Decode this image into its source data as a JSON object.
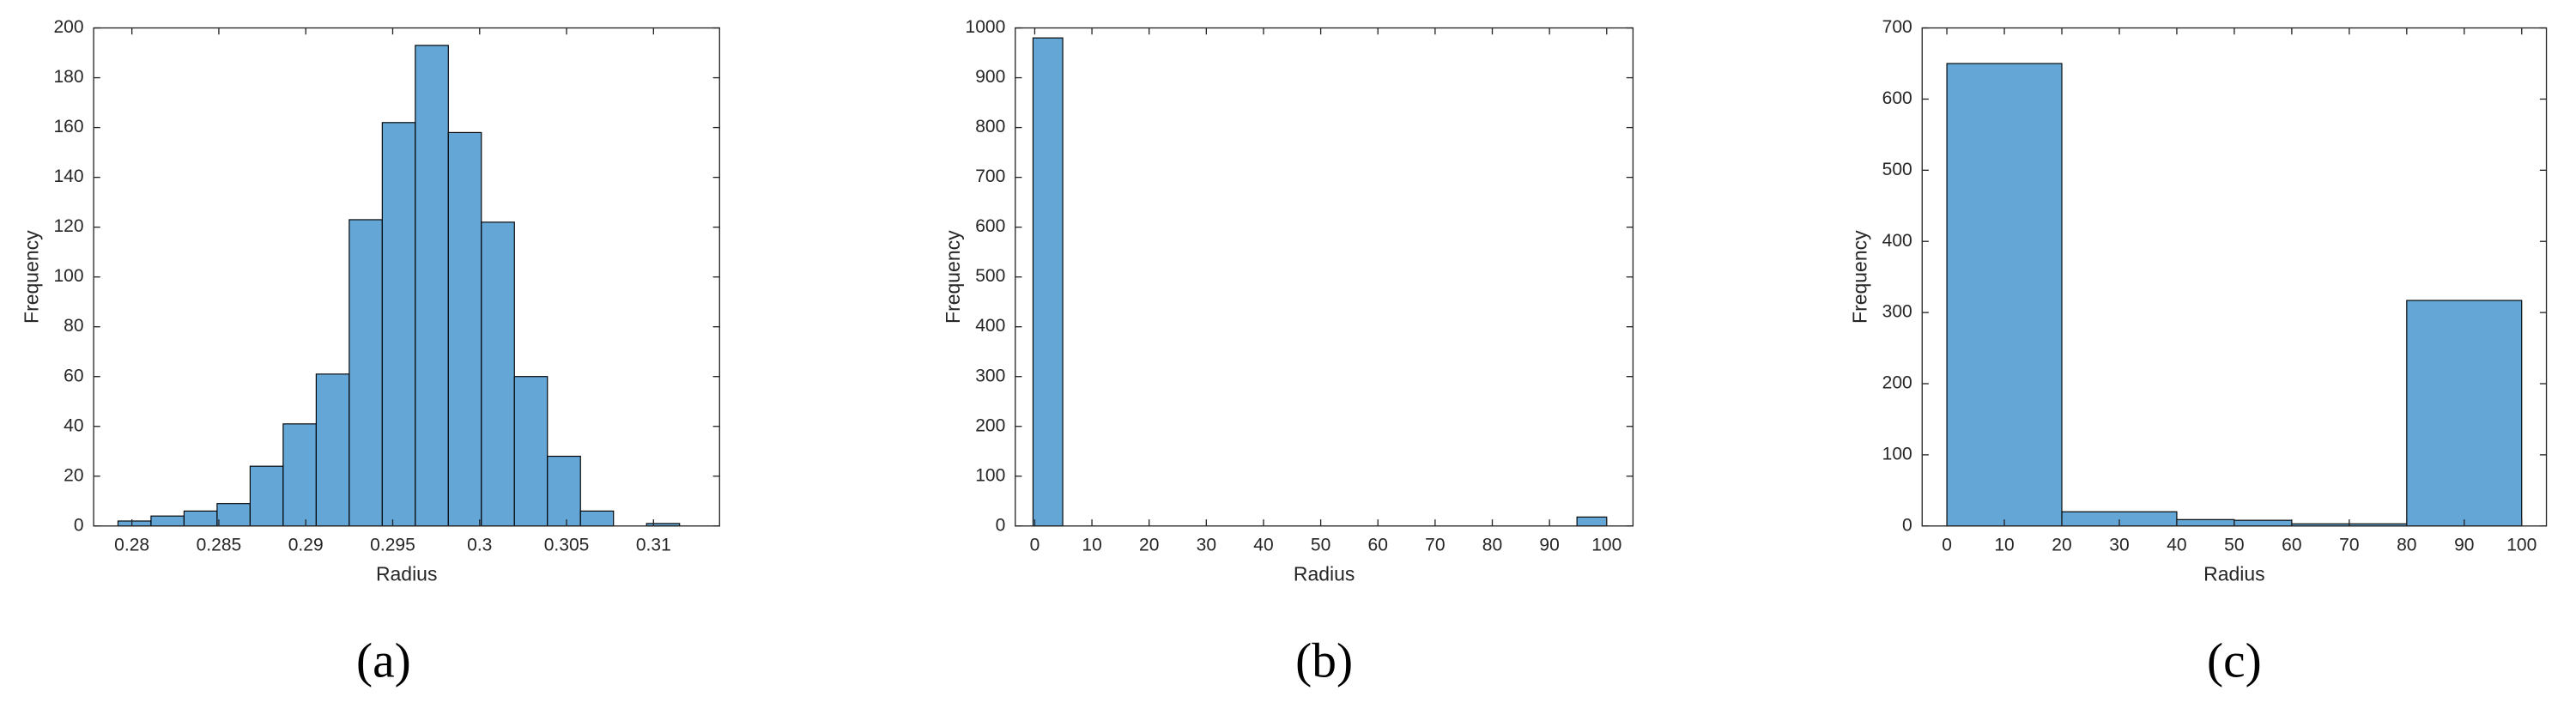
{
  "chart_data": [
    {
      "type": "histogram",
      "caption": "(a)",
      "xlabel": "Radius",
      "ylabel": "Frequency",
      "color": "#64a7d7",
      "bins": [
        0.2792,
        0.2811,
        0.283,
        0.2849,
        0.2868,
        0.2887,
        0.2906,
        0.2925,
        0.2944,
        0.2963,
        0.2982,
        0.3001,
        0.302,
        0.3039,
        0.3058,
        0.3077,
        0.3096,
        0.3115
      ],
      "counts": [
        2,
        4,
        6,
        9,
        24,
        41,
        61,
        123,
        162,
        193,
        158,
        122,
        60,
        28,
        6,
        0,
        1
      ],
      "xlim": [
        0.2778,
        0.3138
      ],
      "xticks": [
        0.28,
        0.285,
        0.29,
        0.295,
        0.3,
        0.305,
        0.31
      ],
      "ylim": [
        0,
        200
      ],
      "yticks": [
        0,
        20,
        40,
        60,
        80,
        100,
        120,
        140,
        160,
        180,
        200
      ]
    },
    {
      "type": "histogram",
      "caption": "(b)",
      "xlabel": "Radius",
      "ylabel": "Frequency",
      "color": "#64a7d7",
      "bins": [
        -0.3,
        4.9,
        10,
        15,
        20,
        25,
        30,
        35,
        40,
        45,
        50,
        55,
        60,
        65,
        70,
        75,
        80,
        85,
        90,
        94.8,
        100
      ],
      "counts": [
        980,
        0,
        0,
        0,
        0,
        0,
        0,
        0,
        0,
        0,
        0,
        0,
        0,
        0,
        0,
        0,
        0,
        0,
        0,
        18
      ],
      "xlim": [
        -3.4,
        104.6
      ],
      "xticks": [
        0,
        10,
        20,
        30,
        40,
        50,
        60,
        70,
        80,
        90,
        100
      ],
      "ylim": [
        0,
        1000
      ],
      "yticks": [
        0,
        100,
        200,
        300,
        400,
        500,
        600,
        700,
        800,
        900,
        1000
      ]
    },
    {
      "type": "histogram",
      "caption": "(c)",
      "xlabel": "Radius",
      "ylabel": "Frequency",
      "color": "#64a7d7",
      "bins": [
        0,
        20,
        40,
        50,
        60,
        70,
        80,
        100
      ],
      "counts": [
        650,
        20,
        9,
        8,
        3,
        3,
        317
      ],
      "xlim": [
        -4.3,
        104.3
      ],
      "xticks": [
        0,
        10,
        20,
        30,
        40,
        50,
        60,
        70,
        80,
        90,
        100
      ],
      "ylim": [
        0,
        700
      ],
      "yticks": [
        0,
        100,
        200,
        300,
        400,
        500,
        600,
        700
      ]
    }
  ]
}
